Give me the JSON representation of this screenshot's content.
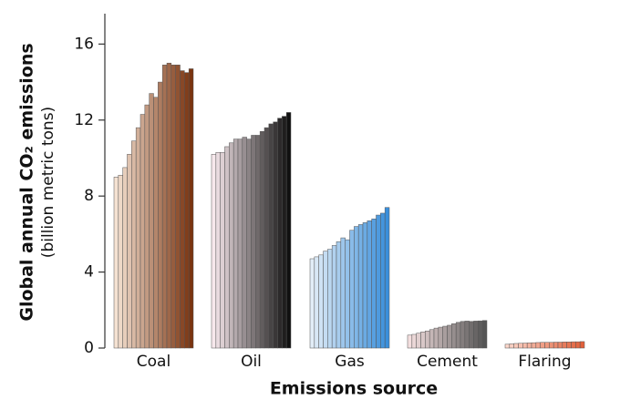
{
  "chart_data": {
    "type": "grouped-bar",
    "y_label": "Global annual CO₂ emissions",
    "y_sublabel": "(billion metric tons)",
    "x_label": "Emissions source",
    "ylim": [
      0,
      17.6
    ],
    "yticks": [
      0,
      4,
      8,
      12,
      16
    ],
    "groups": [
      {
        "name": "Coal",
        "colors": [
          "#f5e2d2",
          "#7a3410"
        ],
        "values": [
          9.0,
          9.1,
          9.5,
          10.2,
          10.9,
          11.6,
          12.3,
          12.8,
          13.4,
          13.2,
          14.0,
          14.9,
          15.0,
          14.9,
          14.9,
          14.6,
          14.5,
          14.7
        ]
      },
      {
        "name": "Oil",
        "colors": [
          "#f7e8ec",
          "#111111"
        ],
        "values": [
          10.2,
          10.3,
          10.3,
          10.6,
          10.8,
          11.0,
          11.0,
          11.1,
          11.0,
          11.2,
          11.2,
          11.4,
          11.6,
          11.8,
          11.9,
          12.1,
          12.2,
          12.4
        ]
      },
      {
        "name": "Gas",
        "colors": [
          "#e2edf7",
          "#3a8fdb"
        ],
        "values": [
          4.7,
          4.8,
          4.9,
          5.1,
          5.2,
          5.4,
          5.6,
          5.8,
          5.7,
          6.2,
          6.4,
          6.5,
          6.6,
          6.7,
          6.8,
          7.0,
          7.1,
          7.4
        ]
      },
      {
        "name": "Cement",
        "colors": [
          "#f4dfdf",
          "#555555"
        ],
        "values": [
          0.68,
          0.72,
          0.78,
          0.85,
          0.9,
          0.97,
          1.05,
          1.1,
          1.15,
          1.2,
          1.28,
          1.35,
          1.4,
          1.42,
          1.4,
          1.42,
          1.43,
          1.45
        ]
      },
      {
        "name": "Flaring",
        "colors": [
          "#fbd6ca",
          "#e2603a"
        ],
        "values": [
          0.2,
          0.22,
          0.24,
          0.25,
          0.26,
          0.27,
          0.28,
          0.29,
          0.3,
          0.3,
          0.3,
          0.31,
          0.31,
          0.32,
          0.32,
          0.33,
          0.33,
          0.34
        ]
      }
    ]
  }
}
